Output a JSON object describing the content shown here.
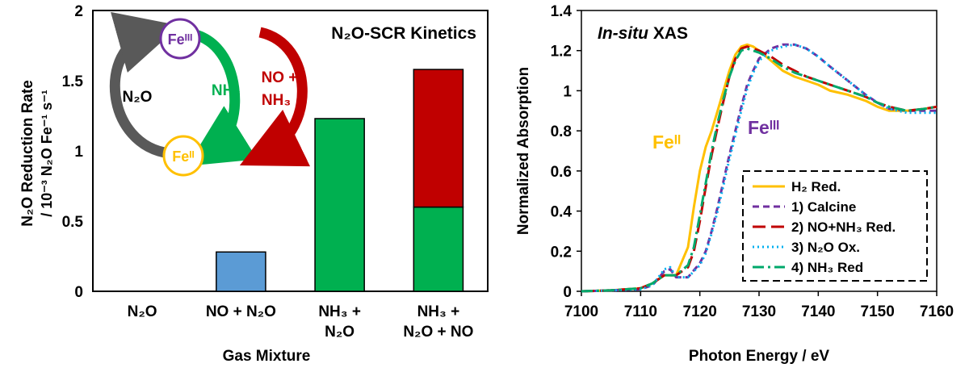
{
  "chart_data": [
    {
      "type": "bar",
      "title": "N₂O-SCR Kinetics",
      "xlabel": "Gas Mixture",
      "ylabel_line1": "N₂O Reduction Rate",
      "ylabel_line2": "/ 10⁻³ N₂O Fe⁻¹ s⁻¹",
      "ylim": [
        0,
        2
      ],
      "yticks": [
        "0",
        "0.5",
        "1",
        "1.5",
        "2"
      ],
      "categories": [
        [
          "N₂O"
        ],
        [
          "NO + N₂O"
        ],
        [
          "NH₃ +",
          "N₂O"
        ],
        [
          "NH₃ +",
          "N₂O + NO"
        ]
      ],
      "series": [
        {
          "name": "NO + N₂O",
          "color": "#5b9bd5",
          "values": [
            0,
            0.28,
            0,
            0
          ]
        },
        {
          "name": "NH₃",
          "color": "#00b050",
          "values": [
            0,
            0,
            1.23,
            0.6
          ]
        },
        {
          "name": "NO + NH₃",
          "color": "#c00000",
          "values": [
            0,
            0,
            0,
            0.98
          ]
        }
      ],
      "cycle": {
        "fe3_label": "Feᴵᴵᴵ",
        "fe2_label": "Feᴵᴵ",
        "n2o_label": "N₂O",
        "nh3_label": "NH₃",
        "no_nh3_label_line1": "NO +",
        "no_nh3_label_line2": "NH₃",
        "fe3_color": "#7030a0",
        "fe2_color": "#ffc000",
        "n2o_arrow_color": "#595959",
        "nh3_arrow_color": "#00b050",
        "no_arrow_color": "#c00000"
      }
    },
    {
      "type": "line",
      "title_italic": "In-situ",
      "title_rest": " XAS",
      "xlabel": "Photon Energy / eV",
      "ylabel": "Normalized Absorption",
      "xlim": [
        7100,
        7160
      ],
      "ylim": [
        0,
        1.4
      ],
      "xticks": [
        "7100",
        "7110",
        "7120",
        "7130",
        "7140",
        "7150",
        "7160"
      ],
      "yticks": [
        "0",
        "0.2",
        "0.4",
        "0.6",
        "0.8",
        "1",
        "1.2",
        "1.4"
      ],
      "annotations": [
        {
          "text": "Feᴵᴵ",
          "color": "#ffc000"
        },
        {
          "text": "Feᴵᴵᴵ",
          "color": "#7030a0"
        }
      ],
      "series": [
        {
          "name": "H₂ Red.",
          "color": "#ffc000",
          "style": "solid",
          "x": [
            7100,
            7105,
            7110,
            7112,
            7114,
            7116,
            7118,
            7119,
            7120,
            7121,
            7122,
            7123,
            7124,
            7125,
            7126,
            7127,
            7128,
            7129,
            7130,
            7132,
            7134,
            7136,
            7138,
            7140,
            7142,
            7145,
            7148,
            7150,
            7152,
            7155,
            7158,
            7160
          ],
          "y": [
            0.0,
            0.005,
            0.015,
            0.04,
            0.08,
            0.08,
            0.22,
            0.42,
            0.6,
            0.72,
            0.8,
            0.9,
            1.0,
            1.1,
            1.18,
            1.22,
            1.23,
            1.22,
            1.2,
            1.15,
            1.1,
            1.07,
            1.05,
            1.03,
            1.0,
            0.98,
            0.95,
            0.92,
            0.9,
            0.9,
            0.91,
            0.92
          ]
        },
        {
          "name": "1) Calcine",
          "color": "#7030a0",
          "style": "dash",
          "x": [
            7100,
            7105,
            7110,
            7112,
            7114,
            7115,
            7116,
            7118,
            7120,
            7121,
            7122,
            7123,
            7124,
            7125,
            7126,
            7127,
            7128,
            7129,
            7130,
            7132,
            7134,
            7136,
            7138,
            7140,
            7142,
            7145,
            7148,
            7150,
            7152,
            7155,
            7158,
            7160
          ],
          "y": [
            0.0,
            0.005,
            0.01,
            0.03,
            0.1,
            0.11,
            0.07,
            0.07,
            0.14,
            0.2,
            0.3,
            0.42,
            0.55,
            0.68,
            0.8,
            0.92,
            1.03,
            1.1,
            1.16,
            1.21,
            1.23,
            1.23,
            1.21,
            1.17,
            1.12,
            1.05,
            0.98,
            0.94,
            0.91,
            0.9,
            0.9,
            0.9
          ]
        },
        {
          "name": "2) NO+NH₃ Red.",
          "color": "#c00000",
          "style": "longdash",
          "x": [
            7100,
            7105,
            7110,
            7112,
            7114,
            7116,
            7118,
            7119,
            7120,
            7121,
            7122,
            7123,
            7124,
            7125,
            7126,
            7127,
            7128,
            7129,
            7130,
            7132,
            7134,
            7136,
            7138,
            7140,
            7142,
            7145,
            7148,
            7150,
            7152,
            7155,
            7158,
            7160
          ],
          "y": [
            0.0,
            0.005,
            0.015,
            0.04,
            0.08,
            0.08,
            0.12,
            0.2,
            0.35,
            0.52,
            0.68,
            0.82,
            0.95,
            1.07,
            1.16,
            1.21,
            1.22,
            1.21,
            1.2,
            1.17,
            1.13,
            1.1,
            1.07,
            1.05,
            1.03,
            1.0,
            0.97,
            0.94,
            0.92,
            0.9,
            0.91,
            0.92
          ]
        },
        {
          "name": "3) N₂O Ox.",
          "color": "#00b0f0",
          "style": "dot",
          "x": [
            7100,
            7105,
            7110,
            7112,
            7114,
            7115,
            7116,
            7118,
            7120,
            7121,
            7122,
            7123,
            7124,
            7125,
            7126,
            7127,
            7128,
            7129,
            7130,
            7132,
            7134,
            7136,
            7138,
            7140,
            7142,
            7145,
            7148,
            7150,
            7152,
            7155,
            7158,
            7160
          ],
          "y": [
            0.0,
            0.005,
            0.01,
            0.03,
            0.11,
            0.12,
            0.07,
            0.07,
            0.13,
            0.19,
            0.29,
            0.4,
            0.53,
            0.66,
            0.78,
            0.9,
            1.01,
            1.09,
            1.15,
            1.2,
            1.22,
            1.23,
            1.21,
            1.17,
            1.12,
            1.05,
            0.98,
            0.94,
            0.91,
            0.89,
            0.89,
            0.89
          ]
        },
        {
          "name": "4) NH₃ Red",
          "color": "#00a86b",
          "style": "dashdot",
          "x": [
            7100,
            7105,
            7110,
            7112,
            7114,
            7116,
            7118,
            7119,
            7120,
            7121,
            7122,
            7123,
            7124,
            7125,
            7126,
            7127,
            7128,
            7129,
            7130,
            7132,
            7134,
            7136,
            7138,
            7140,
            7142,
            7145,
            7148,
            7150,
            7152,
            7155,
            7158,
            7160
          ],
          "y": [
            0.0,
            0.005,
            0.015,
            0.04,
            0.08,
            0.08,
            0.13,
            0.22,
            0.38,
            0.54,
            0.7,
            0.84,
            0.96,
            1.07,
            1.15,
            1.2,
            1.21,
            1.2,
            1.19,
            1.16,
            1.12,
            1.09,
            1.07,
            1.05,
            1.03,
            1.0,
            0.97,
            0.94,
            0.92,
            0.9,
            0.91,
            0.92
          ]
        }
      ]
    }
  ]
}
